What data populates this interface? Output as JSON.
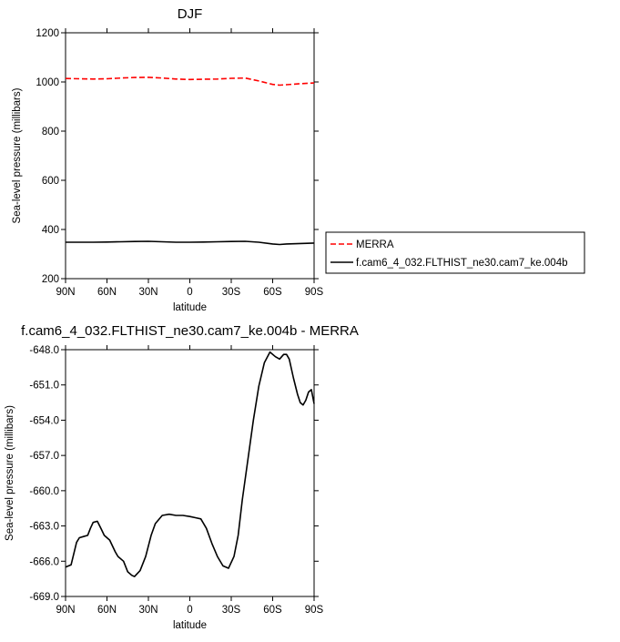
{
  "chart_data": [
    {
      "type": "line",
      "title": "DJF",
      "xlabel": "latitude",
      "ylabel": "Sea-level pressure (millibars)",
      "ylim": [
        200,
        1200
      ],
      "xlim": [
        90,
        -90
      ],
      "yticks": [
        200,
        400,
        600,
        800,
        1000,
        1200
      ],
      "ytick_labels": [
        "200",
        "400",
        "600",
        "800",
        "1000",
        "1200"
      ],
      "xticks": [
        90,
        60,
        30,
        0,
        -30,
        -60,
        -90
      ],
      "xtick_labels": [
        "90N",
        "60N",
        "30N",
        "0",
        "30S",
        "60S",
        "90S"
      ],
      "grid": false,
      "legend_position": "right-outside",
      "series": [
        {
          "name": "MERRA",
          "color": "#ff0000",
          "dash": true,
          "x": [
            90,
            80,
            70,
            60,
            50,
            40,
            30,
            20,
            10,
            0,
            -10,
            -20,
            -30,
            -40,
            -50,
            -60,
            -65,
            -70,
            -80,
            -90
          ],
          "y": [
            1014,
            1013,
            1012,
            1013,
            1016,
            1018,
            1019,
            1016,
            1012,
            1010,
            1011,
            1012,
            1015,
            1016,
            1004,
            990,
            987,
            989,
            993,
            996
          ]
        },
        {
          "name": "f.cam6_4_032.FLTHIST_ne30.cam7_ke.004b",
          "color": "#000000",
          "dash": false,
          "x": [
            90,
            80,
            70,
            60,
            50,
            40,
            30,
            20,
            10,
            0,
            -10,
            -20,
            -30,
            -40,
            -50,
            -60,
            -65,
            -70,
            -80,
            -90
          ],
          "y": [
            348,
            348,
            348,
            349,
            350,
            351,
            352,
            350,
            348,
            348,
            349,
            350,
            351,
            352,
            348,
            341,
            339,
            341,
            343,
            345
          ]
        }
      ]
    },
    {
      "type": "line",
      "title": "f.cam6_4_032.FLTHIST_ne30.cam7_ke.004b - MERRA",
      "xlabel": "latitude",
      "ylabel": "Sea-level pressure (millibars)",
      "ylim": [
        -669.0,
        -648.0
      ],
      "xlim": [
        90,
        -90
      ],
      "yticks": [
        -669.0,
        -666.0,
        -663.0,
        -660.0,
        -657.0,
        -654.0,
        -651.0,
        -648.0
      ],
      "ytick_labels": [
        "-669.0",
        "-666.0",
        "-663.0",
        "-660.0",
        "-657.0",
        "-654.0",
        "-651.0",
        "-648.0"
      ],
      "xticks": [
        90,
        60,
        30,
        0,
        -30,
        -60,
        -90
      ],
      "xtick_labels": [
        "90N",
        "60N",
        "30N",
        "0",
        "30S",
        "60S",
        "90S"
      ],
      "grid": false,
      "series": [
        {
          "color": "#000000",
          "x": [
            90,
            86,
            82,
            80,
            77,
            74,
            72,
            70,
            67,
            64,
            62,
            58,
            54,
            52,
            48,
            45,
            42,
            40,
            36,
            32,
            28,
            25,
            20,
            15,
            10,
            5,
            0,
            -4,
            -8,
            -12,
            -16,
            -20,
            -24,
            -28,
            -32,
            -35,
            -38,
            -42,
            -46,
            -50,
            -54,
            -58,
            -62,
            -65,
            -68,
            -70,
            -72,
            -75,
            -78,
            -80,
            -82,
            -84,
            -86,
            -88,
            -90
          ],
          "y": [
            -666.5,
            -666.3,
            -664.4,
            -664.0,
            -663.9,
            -663.8,
            -663.2,
            -662.7,
            -662.6,
            -663.3,
            -663.8,
            -664.2,
            -665.2,
            -665.6,
            -666.0,
            -666.9,
            -667.2,
            -667.3,
            -666.8,
            -665.6,
            -663.8,
            -662.8,
            -662.1,
            -662.0,
            -662.1,
            -662.1,
            -662.2,
            -662.3,
            -662.4,
            -663.2,
            -664.5,
            -665.6,
            -666.4,
            -666.6,
            -665.6,
            -663.8,
            -660.8,
            -657.4,
            -654.0,
            -651.1,
            -649.1,
            -648.2,
            -648.6,
            -648.8,
            -648.4,
            -648.4,
            -648.8,
            -650.4,
            -651.8,
            -652.5,
            -652.7,
            -652.3,
            -651.6,
            -651.4,
            -652.6
          ]
        }
      ]
    }
  ]
}
